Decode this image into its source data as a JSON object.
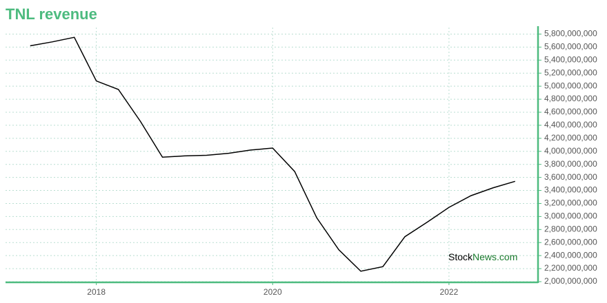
{
  "chart_data": {
    "type": "line",
    "title": "TNL revenue",
    "x": [
      2017.25,
      2017.5,
      2017.75,
      2018,
      2018.25,
      2018.5,
      2018.75,
      2019,
      2019.25,
      2019.5,
      2019.75,
      2020,
      2020.25,
      2020.5,
      2020.75,
      2021,
      2021.25,
      2021.5,
      2021.75,
      2022,
      2022.25,
      2022.5,
      2022.75
    ],
    "series": [
      {
        "name": "TNL revenue",
        "color": "#000000",
        "values": [
          5620000000,
          5680000000,
          5750000000,
          5080000000,
          4950000000,
          4460000000,
          3910000000,
          3930000000,
          3940000000,
          3970000000,
          4020000000,
          4050000000,
          3690000000,
          2980000000,
          2490000000,
          2160000000,
          2230000000,
          2690000000,
          2910000000,
          3140000000,
          3320000000,
          3440000000,
          3540000000
        ]
      }
    ],
    "xlim": [
      2016.97,
      2023.01
    ],
    "xticks": [
      2018,
      2020,
      2022
    ],
    "ylim": [
      2000000000,
      5900000000
    ],
    "yticks": [
      {
        "value": 2000000000,
        "label": "2,000,000,000"
      },
      {
        "value": 2200000000,
        "label": "2,200,000,000"
      },
      {
        "value": 2400000000,
        "label": "2,400,000,000"
      },
      {
        "value": 2600000000,
        "label": "2,600,000,000"
      },
      {
        "value": 2800000000,
        "label": "2,800,000,000"
      },
      {
        "value": 3000000000,
        "label": "3,000,000,000"
      },
      {
        "value": 3200000000,
        "label": "3,200,000,000"
      },
      {
        "value": 3400000000,
        "label": "3,400,000,000"
      },
      {
        "value": 3600000000,
        "label": "3,600,000,000"
      },
      {
        "value": 3800000000,
        "label": "3,800,000,000"
      },
      {
        "value": 4000000000,
        "label": "4,000,000,000"
      },
      {
        "value": 4200000000,
        "label": "4,200,000,000"
      },
      {
        "value": 4400000000,
        "label": "4,400,000,000"
      },
      {
        "value": 4600000000,
        "label": "4,600,000,000"
      },
      {
        "value": 4800000000,
        "label": "4,800,000,000"
      },
      {
        "value": 5000000000,
        "label": "5,000,000,000"
      },
      {
        "value": 5200000000,
        "label": "5,200,000,000"
      },
      {
        "value": 5400000000,
        "label": "5,400,000,000"
      },
      {
        "value": 5600000000,
        "label": "5,600,000,000"
      },
      {
        "value": 5800000000,
        "label": "5,800,000,000"
      }
    ],
    "grid": true,
    "axis_color": "#4dbb7f",
    "watermark": {
      "part1": "Stock",
      "part2": "News.com"
    }
  }
}
